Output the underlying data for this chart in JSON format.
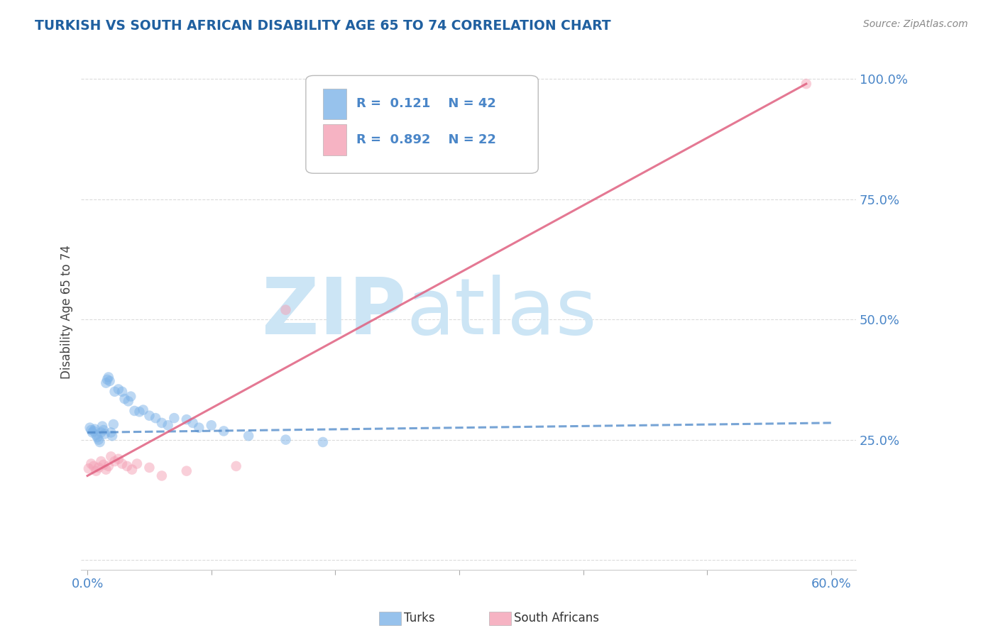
{
  "title": "TURKISH VS SOUTH AFRICAN DISABILITY AGE 65 TO 74 CORRELATION CHART",
  "source": "Source: ZipAtlas.com",
  "ylabel": "Disability Age 65 to 74",
  "xlim": [
    -0.005,
    0.62
  ],
  "ylim": [
    -0.02,
    1.05
  ],
  "xticks": [
    0.0,
    0.1,
    0.2,
    0.3,
    0.4,
    0.5,
    0.6
  ],
  "xtick_labels": [
    "0.0%",
    "",
    "",
    "",
    "",
    "",
    "60.0%"
  ],
  "yticks": [
    0.0,
    0.25,
    0.5,
    0.75,
    1.0
  ],
  "ytick_labels": [
    "",
    "25.0%",
    "50.0%",
    "75.0%",
    "100.0%"
  ],
  "turks_color": "#7db3e8",
  "sa_color": "#f4a0b5",
  "turks_line_color": "#4a86c8",
  "sa_line_color": "#e06080",
  "turks_R": 0.121,
  "turks_N": 42,
  "sa_R": 0.892,
  "sa_N": 22,
  "watermark_zip": "ZIP",
  "watermark_atlas": "atlas",
  "watermark_color": "#cce5f5",
  "legend_label_turks": "Turks",
  "legend_label_sa": "South Africans",
  "turks_x": [
    0.002,
    0.003,
    0.004,
    0.005,
    0.006,
    0.007,
    0.008,
    0.009,
    0.01,
    0.011,
    0.012,
    0.013,
    0.014,
    0.015,
    0.016,
    0.017,
    0.018,
    0.019,
    0.02,
    0.021,
    0.022,
    0.025,
    0.028,
    0.03,
    0.033,
    0.035,
    0.038,
    0.042,
    0.045,
    0.05,
    0.055,
    0.06,
    0.065,
    0.07,
    0.08,
    0.085,
    0.09,
    0.1,
    0.11,
    0.13,
    0.16,
    0.19
  ],
  "turks_y": [
    0.275,
    0.27,
    0.265,
    0.268,
    0.272,
    0.26,
    0.255,
    0.25,
    0.245,
    0.265,
    0.278,
    0.27,
    0.262,
    0.368,
    0.375,
    0.38,
    0.372,
    0.265,
    0.258,
    0.282,
    0.35,
    0.355,
    0.35,
    0.335,
    0.33,
    0.34,
    0.31,
    0.308,
    0.312,
    0.3,
    0.295,
    0.285,
    0.28,
    0.295,
    0.292,
    0.285,
    0.275,
    0.28,
    0.268,
    0.258,
    0.25,
    0.245
  ],
  "sa_x": [
    0.001,
    0.003,
    0.005,
    0.007,
    0.009,
    0.011,
    0.013,
    0.015,
    0.017,
    0.019,
    0.022,
    0.025,
    0.028,
    0.032,
    0.036,
    0.04,
    0.05,
    0.06,
    0.08,
    0.12,
    0.16,
    0.58
  ],
  "sa_y": [
    0.19,
    0.2,
    0.195,
    0.185,
    0.192,
    0.205,
    0.198,
    0.188,
    0.195,
    0.215,
    0.205,
    0.21,
    0.2,
    0.195,
    0.188,
    0.2,
    0.192,
    0.175,
    0.185,
    0.195,
    0.52,
    0.99
  ],
  "turks_line_x0": 0.0,
  "turks_line_y0": 0.265,
  "turks_line_x1": 0.6,
  "turks_line_y1": 0.285,
  "sa_line_x0": 0.0,
  "sa_line_y0": 0.175,
  "sa_line_x1": 0.58,
  "sa_line_y1": 0.99,
  "background_color": "#ffffff",
  "grid_color": "#cccccc",
  "title_color": "#2060a0",
  "axis_label_color": "#444444",
  "tick_label_color": "#4a86c8",
  "marker_size": 110,
  "marker_alpha": 0.5,
  "line_width": 2.2
}
